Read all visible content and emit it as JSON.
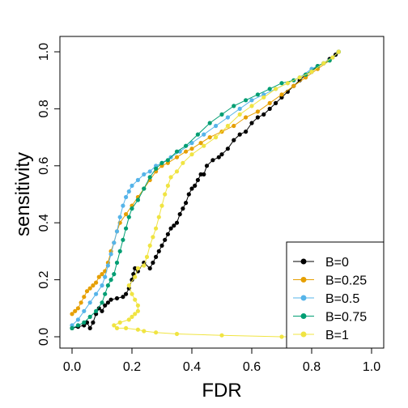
{
  "chart_data": {
    "type": "line",
    "title": "",
    "xlabel": "FDR",
    "ylabel": "sensitivity",
    "xlim": [
      0,
      1
    ],
    "ylim": [
      0,
      1
    ],
    "xticks": [
      "0.0",
      "0.2",
      "0.4",
      "0.6",
      "0.8",
      "1.0"
    ],
    "yticks": [
      "0.0",
      "0.2",
      "0.4",
      "0.6",
      "0.8",
      "1.0"
    ],
    "legend": "bottom-right",
    "grid": false,
    "series": [
      {
        "name": "B=0",
        "color": "#000000",
        "points": [
          [
            0.0,
            0.03
          ],
          [
            0.02,
            0.035
          ],
          [
            0.04,
            0.04
          ],
          [
            0.05,
            0.05
          ],
          [
            0.06,
            0.03
          ],
          [
            0.07,
            0.05
          ],
          [
            0.08,
            0.08
          ],
          [
            0.09,
            0.1
          ],
          [
            0.1,
            0.09
          ],
          [
            0.11,
            0.11
          ],
          [
            0.12,
            0.12
          ],
          [
            0.13,
            0.13
          ],
          [
            0.15,
            0.135
          ],
          [
            0.17,
            0.14
          ],
          [
            0.18,
            0.15
          ],
          [
            0.19,
            0.17
          ],
          [
            0.2,
            0.2
          ],
          [
            0.205,
            0.22
          ],
          [
            0.21,
            0.24
          ],
          [
            0.22,
            0.23
          ],
          [
            0.24,
            0.26
          ],
          [
            0.26,
            0.24
          ],
          [
            0.27,
            0.26
          ],
          [
            0.28,
            0.28
          ],
          [
            0.29,
            0.3
          ],
          [
            0.3,
            0.32
          ],
          [
            0.31,
            0.34
          ],
          [
            0.32,
            0.36
          ],
          [
            0.33,
            0.38
          ],
          [
            0.34,
            0.39
          ],
          [
            0.35,
            0.4
          ],
          [
            0.36,
            0.43
          ],
          [
            0.37,
            0.45
          ],
          [
            0.38,
            0.47
          ],
          [
            0.39,
            0.5
          ],
          [
            0.4,
            0.52
          ],
          [
            0.41,
            0.53
          ],
          [
            0.42,
            0.55
          ],
          [
            0.43,
            0.57
          ],
          [
            0.44,
            0.57
          ],
          [
            0.45,
            0.6
          ],
          [
            0.47,
            0.62
          ],
          [
            0.49,
            0.63
          ],
          [
            0.5,
            0.64
          ],
          [
            0.52,
            0.66
          ],
          [
            0.54,
            0.69
          ],
          [
            0.56,
            0.71
          ],
          [
            0.58,
            0.72
          ],
          [
            0.6,
            0.75
          ],
          [
            0.62,
            0.77
          ],
          [
            0.64,
            0.78
          ],
          [
            0.66,
            0.8
          ],
          [
            0.68,
            0.82
          ],
          [
            0.7,
            0.84
          ],
          [
            0.72,
            0.86
          ],
          [
            0.74,
            0.88
          ],
          [
            0.76,
            0.9
          ],
          [
            0.78,
            0.92
          ],
          [
            0.8,
            0.93
          ],
          [
            0.82,
            0.95
          ],
          [
            0.84,
            0.96
          ],
          [
            0.86,
            0.975
          ],
          [
            0.88,
            0.99
          ],
          [
            0.89,
            1.0
          ]
        ]
      },
      {
        "name": "B=0.25",
        "color": "#E69F00",
        "points": [
          [
            0.0,
            0.08
          ],
          [
            0.01,
            0.09
          ],
          [
            0.02,
            0.1
          ],
          [
            0.03,
            0.12
          ],
          [
            0.04,
            0.14
          ],
          [
            0.05,
            0.16
          ],
          [
            0.06,
            0.17
          ],
          [
            0.07,
            0.18
          ],
          [
            0.08,
            0.19
          ],
          [
            0.09,
            0.21
          ],
          [
            0.1,
            0.22
          ],
          [
            0.11,
            0.23
          ],
          [
            0.12,
            0.26
          ],
          [
            0.13,
            0.3
          ],
          [
            0.14,
            0.33
          ],
          [
            0.15,
            0.37
          ],
          [
            0.16,
            0.4
          ],
          [
            0.18,
            0.43
          ],
          [
            0.2,
            0.46
          ],
          [
            0.22,
            0.49
          ],
          [
            0.24,
            0.52
          ],
          [
            0.26,
            0.55
          ],
          [
            0.28,
            0.58
          ],
          [
            0.3,
            0.6
          ],
          [
            0.32,
            0.61
          ],
          [
            0.35,
            0.63
          ],
          [
            0.38,
            0.65
          ],
          [
            0.4,
            0.66
          ],
          [
            0.43,
            0.68
          ],
          [
            0.46,
            0.7
          ],
          [
            0.5,
            0.72
          ],
          [
            0.54,
            0.74
          ],
          [
            0.58,
            0.77
          ],
          [
            0.62,
            0.79
          ],
          [
            0.66,
            0.82
          ],
          [
            0.7,
            0.85
          ],
          [
            0.74,
            0.88
          ],
          [
            0.78,
            0.91
          ],
          [
            0.82,
            0.94
          ],
          [
            0.86,
            0.97
          ],
          [
            0.89,
            1.0
          ]
        ]
      },
      {
        "name": "B=0.5",
        "color": "#56B4E9",
        "points": [
          [
            0.0,
            0.04
          ],
          [
            0.02,
            0.06
          ],
          [
            0.04,
            0.09
          ],
          [
            0.06,
            0.12
          ],
          [
            0.08,
            0.15
          ],
          [
            0.1,
            0.18
          ],
          [
            0.11,
            0.21
          ],
          [
            0.12,
            0.25
          ],
          [
            0.13,
            0.29
          ],
          [
            0.14,
            0.33
          ],
          [
            0.15,
            0.37
          ],
          [
            0.16,
            0.42
          ],
          [
            0.17,
            0.46
          ],
          [
            0.18,
            0.49
          ],
          [
            0.19,
            0.51
          ],
          [
            0.2,
            0.53
          ],
          [
            0.22,
            0.55
          ],
          [
            0.24,
            0.57
          ],
          [
            0.26,
            0.58
          ],
          [
            0.28,
            0.6
          ],
          [
            0.3,
            0.61
          ],
          [
            0.33,
            0.63
          ],
          [
            0.36,
            0.65
          ],
          [
            0.4,
            0.68
          ],
          [
            0.44,
            0.71
          ],
          [
            0.48,
            0.74
          ],
          [
            0.52,
            0.77
          ],
          [
            0.56,
            0.8
          ],
          [
            0.6,
            0.83
          ],
          [
            0.64,
            0.85
          ],
          [
            0.68,
            0.87
          ],
          [
            0.72,
            0.89
          ],
          [
            0.76,
            0.91
          ],
          [
            0.8,
            0.94
          ],
          [
            0.84,
            0.96
          ],
          [
            0.87,
            0.98
          ],
          [
            0.89,
            1.0
          ]
        ]
      },
      {
        "name": "B=0.75",
        "color": "#009E73",
        "points": [
          [
            0.0,
            0.03
          ],
          [
            0.02,
            0.04
          ],
          [
            0.04,
            0.05
          ],
          [
            0.06,
            0.07
          ],
          [
            0.08,
            0.09
          ],
          [
            0.1,
            0.12
          ],
          [
            0.11,
            0.15
          ],
          [
            0.12,
            0.18
          ],
          [
            0.13,
            0.2
          ],
          [
            0.14,
            0.22
          ],
          [
            0.15,
            0.26
          ],
          [
            0.16,
            0.3
          ],
          [
            0.17,
            0.34
          ],
          [
            0.18,
            0.38
          ],
          [
            0.19,
            0.42
          ],
          [
            0.2,
            0.45
          ],
          [
            0.22,
            0.48
          ],
          [
            0.24,
            0.52
          ],
          [
            0.26,
            0.56
          ],
          [
            0.28,
            0.59
          ],
          [
            0.3,
            0.61
          ],
          [
            0.32,
            0.62
          ],
          [
            0.35,
            0.65
          ],
          [
            0.38,
            0.67
          ],
          [
            0.42,
            0.71
          ],
          [
            0.46,
            0.75
          ],
          [
            0.5,
            0.78
          ],
          [
            0.54,
            0.81
          ],
          [
            0.58,
            0.83
          ],
          [
            0.62,
            0.85
          ],
          [
            0.66,
            0.87
          ],
          [
            0.7,
            0.89
          ],
          [
            0.74,
            0.9
          ],
          [
            0.78,
            0.92
          ],
          [
            0.82,
            0.95
          ],
          [
            0.86,
            0.97
          ],
          [
            0.89,
            1.0
          ]
        ]
      },
      {
        "name": "B=1",
        "color": "#F0E442",
        "points": [
          [
            0.85,
            0.0
          ],
          [
            0.7,
            0.0
          ],
          [
            0.5,
            0.005
          ],
          [
            0.35,
            0.01
          ],
          [
            0.28,
            0.015
          ],
          [
            0.24,
            0.02
          ],
          [
            0.22,
            0.025
          ],
          [
            0.18,
            0.03
          ],
          [
            0.15,
            0.03
          ],
          [
            0.14,
            0.04
          ],
          [
            0.16,
            0.05
          ],
          [
            0.19,
            0.06
          ],
          [
            0.2,
            0.07
          ],
          [
            0.21,
            0.08
          ],
          [
            0.22,
            0.09
          ],
          [
            0.22,
            0.11
          ],
          [
            0.21,
            0.13
          ],
          [
            0.2,
            0.15
          ],
          [
            0.19,
            0.18
          ],
          [
            0.21,
            0.21
          ],
          [
            0.22,
            0.24
          ],
          [
            0.24,
            0.25
          ],
          [
            0.25,
            0.28
          ],
          [
            0.26,
            0.32
          ],
          [
            0.27,
            0.35
          ],
          [
            0.28,
            0.38
          ],
          [
            0.29,
            0.42
          ],
          [
            0.3,
            0.46
          ],
          [
            0.31,
            0.5
          ],
          [
            0.32,
            0.53
          ],
          [
            0.33,
            0.56
          ],
          [
            0.35,
            0.58
          ],
          [
            0.37,
            0.61
          ],
          [
            0.4,
            0.64
          ],
          [
            0.44,
            0.67
          ],
          [
            0.48,
            0.7
          ],
          [
            0.52,
            0.74
          ],
          [
            0.56,
            0.78
          ],
          [
            0.6,
            0.81
          ],
          [
            0.64,
            0.84
          ],
          [
            0.68,
            0.87
          ],
          [
            0.72,
            0.89
          ],
          [
            0.76,
            0.91
          ],
          [
            0.8,
            0.93
          ],
          [
            0.84,
            0.96
          ],
          [
            0.87,
            0.98
          ],
          [
            0.89,
            1.0
          ]
        ]
      }
    ]
  }
}
